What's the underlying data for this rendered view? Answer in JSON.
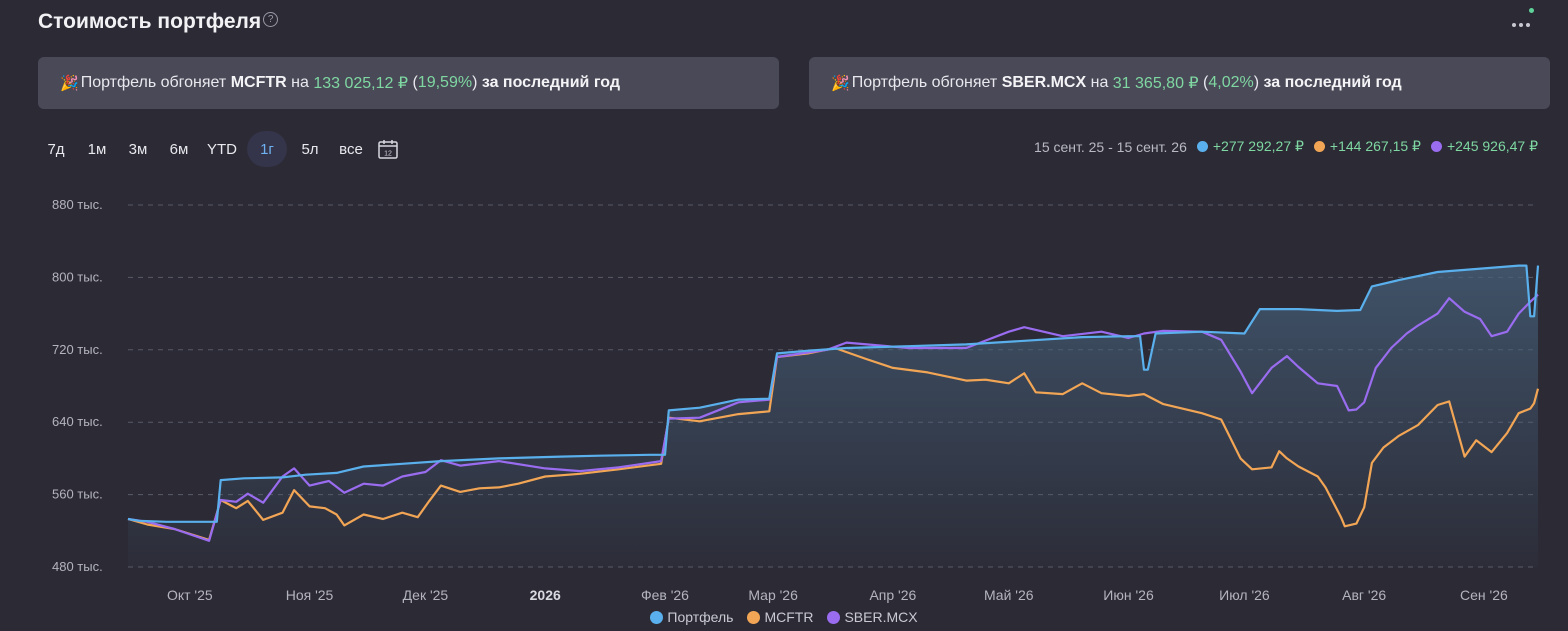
{
  "header": {
    "title": "Стоимость портфеля",
    "help_icon": "?"
  },
  "banners": [
    {
      "icon": "🎉",
      "prefix": "Портфель обгоняет ",
      "ticker": "MCFTR",
      "mid": " на ",
      "amount": "133 025,12 ₽",
      "pct_open": " (",
      "pct": "19,59%",
      "pct_close": ")",
      "suffix": " за последний год"
    },
    {
      "icon": "🎉",
      "prefix": "Портфель обгоняет ",
      "ticker": "SBER.MCX",
      "mid": " на ",
      "amount": "31 365,80 ₽",
      "pct_open": " (",
      "pct": "4,02%",
      "pct_close": ")",
      "suffix": " за последний год"
    }
  ],
  "periods": [
    "7д",
    "1м",
    "3м",
    "6м",
    "YTD",
    "1г",
    "5л",
    "все"
  ],
  "active_period": "1г",
  "calendar_icon_text": "12",
  "summary": {
    "range": "15 сент. 25 - 15 сент. 26",
    "items": [
      {
        "color": "#5ab0ec",
        "value": "+277 292,27 ₽"
      },
      {
        "color": "#f2a655",
        "value": "+144 267,15 ₽"
      },
      {
        "color": "#9a6cf0",
        "value": "+245 926,47 ₽"
      }
    ]
  },
  "colors": {
    "portfolio": "#5ab0ec",
    "mcftr": "#f2a655",
    "sber": "#9a6cf0",
    "green": "#7fd7a2",
    "background": "#2b2a35"
  },
  "chart_data": {
    "type": "line",
    "y_ticks": [
      "480 тыс.",
      "560 тыс.",
      "640 тыс.",
      "720 тыс.",
      "800 тыс.",
      "880 тыс."
    ],
    "y_tick_values": [
      480,
      560,
      640,
      720,
      800,
      880
    ],
    "ylim": [
      480,
      880
    ],
    "x_range": [
      "2025-09-15",
      "2026-09-15"
    ],
    "x_ticks": [
      {
        "label": "Окт '25",
        "date": "2025-10-01"
      },
      {
        "label": "Ноя '25",
        "date": "2025-11-01"
      },
      {
        "label": "Дек '25",
        "date": "2025-12-01"
      },
      {
        "label": "2026",
        "date": "2026-01-01",
        "bold": true
      },
      {
        "label": "Фев '26",
        "date": "2026-02-01"
      },
      {
        "label": "Мар '26",
        "date": "2026-03-01"
      },
      {
        "label": "Апр '26",
        "date": "2026-04-01"
      },
      {
        "label": "Май '26",
        "date": "2026-05-01"
      },
      {
        "label": "Июн '26",
        "date": "2026-06-01"
      },
      {
        "label": "Июл '26",
        "date": "2026-07-01"
      },
      {
        "label": "Авг '26",
        "date": "2026-08-01"
      },
      {
        "label": "Сен '26",
        "date": "2026-09-01"
      }
    ],
    "grid": true,
    "series": [
      {
        "name": "Портфель",
        "color": "#5ab0ec",
        "points": [
          [
            "2025-09-15",
            533
          ],
          [
            "2025-09-18",
            531
          ],
          [
            "2025-09-25",
            530
          ],
          [
            "2025-10-08",
            530
          ],
          [
            "2025-10-09",
            576
          ],
          [
            "2025-10-15",
            578
          ],
          [
            "2025-10-25",
            579
          ],
          [
            "2025-10-31",
            582
          ],
          [
            "2025-11-08",
            584
          ],
          [
            "2025-11-15",
            591
          ],
          [
            "2025-11-25",
            594
          ],
          [
            "2025-12-05",
            597
          ],
          [
            "2025-12-20",
            600
          ],
          [
            "2026-01-05",
            602
          ],
          [
            "2026-01-15",
            603
          ],
          [
            "2026-01-28",
            604
          ],
          [
            "2026-02-01",
            604
          ],
          [
            "2026-02-02",
            653
          ],
          [
            "2026-02-10",
            656
          ],
          [
            "2026-02-20",
            665
          ],
          [
            "2026-02-28",
            666
          ],
          [
            "2026-03-02",
            716
          ],
          [
            "2026-03-10",
            719
          ],
          [
            "2026-03-20",
            722
          ],
          [
            "2026-04-05",
            724
          ],
          [
            "2026-04-20",
            726
          ],
          [
            "2026-05-05",
            730
          ],
          [
            "2026-05-20",
            734
          ],
          [
            "2026-06-01",
            735
          ],
          [
            "2026-06-04",
            735
          ],
          [
            "2026-06-05",
            698
          ],
          [
            "2026-06-06",
            698
          ],
          [
            "2026-06-08",
            738
          ],
          [
            "2026-06-20",
            740
          ],
          [
            "2026-07-01",
            738
          ],
          [
            "2026-07-05",
            765
          ],
          [
            "2026-07-15",
            765
          ],
          [
            "2026-07-25",
            763
          ],
          [
            "2026-07-31",
            764
          ],
          [
            "2026-08-03",
            790
          ],
          [
            "2026-08-10",
            797
          ],
          [
            "2026-08-20",
            806
          ],
          [
            "2026-09-01",
            810
          ],
          [
            "2026-09-10",
            813
          ],
          [
            "2026-09-12",
            813
          ],
          [
            "2026-09-13",
            757
          ],
          [
            "2026-09-14",
            757
          ],
          [
            "2026-09-15",
            813
          ]
        ]
      },
      {
        "name": "MCFTR",
        "color": "#f2a655",
        "points": [
          [
            "2025-09-15",
            533
          ],
          [
            "2025-09-20",
            527
          ],
          [
            "2025-09-27",
            522
          ],
          [
            "2025-10-06",
            510
          ],
          [
            "2025-10-09",
            554
          ],
          [
            "2025-10-13",
            545
          ],
          [
            "2025-10-16",
            553
          ],
          [
            "2025-10-20",
            532
          ],
          [
            "2025-10-25",
            540
          ],
          [
            "2025-10-28",
            565
          ],
          [
            "2025-11-01",
            547
          ],
          [
            "2025-11-05",
            545
          ],
          [
            "2025-11-08",
            538
          ],
          [
            "2025-11-10",
            526
          ],
          [
            "2025-11-15",
            538
          ],
          [
            "2025-11-20",
            533
          ],
          [
            "2025-11-25",
            540
          ],
          [
            "2025-11-29",
            535
          ],
          [
            "2025-12-02",
            553
          ],
          [
            "2025-12-05",
            570
          ],
          [
            "2025-12-10",
            563
          ],
          [
            "2025-12-15",
            567
          ],
          [
            "2025-12-20",
            568
          ],
          [
            "2025-12-25",
            572
          ],
          [
            "2026-01-01",
            580
          ],
          [
            "2026-01-10",
            583
          ],
          [
            "2026-01-20",
            588
          ],
          [
            "2026-01-31",
            594
          ],
          [
            "2026-02-02",
            645
          ],
          [
            "2026-02-10",
            641
          ],
          [
            "2026-02-20",
            649
          ],
          [
            "2026-02-28",
            652
          ],
          [
            "2026-03-02",
            712
          ],
          [
            "2026-03-10",
            716
          ],
          [
            "2026-03-17",
            722
          ],
          [
            "2026-03-25",
            710
          ],
          [
            "2026-04-01",
            700
          ],
          [
            "2026-04-10",
            695
          ],
          [
            "2026-04-20",
            686
          ],
          [
            "2026-04-25",
            687
          ],
          [
            "2026-05-01",
            683
          ],
          [
            "2026-05-05",
            694
          ],
          [
            "2026-05-08",
            673
          ],
          [
            "2026-05-15",
            671
          ],
          [
            "2026-05-20",
            683
          ],
          [
            "2026-05-25",
            672
          ],
          [
            "2026-06-01",
            669
          ],
          [
            "2026-06-05",
            671
          ],
          [
            "2026-06-10",
            660
          ],
          [
            "2026-06-20",
            650
          ],
          [
            "2026-06-25",
            643
          ],
          [
            "2026-06-30",
            600
          ],
          [
            "2026-07-03",
            588
          ],
          [
            "2026-07-08",
            590
          ],
          [
            "2026-07-10",
            608
          ],
          [
            "2026-07-12",
            600
          ],
          [
            "2026-07-15",
            591
          ],
          [
            "2026-07-20",
            580
          ],
          [
            "2026-07-22",
            568
          ],
          [
            "2026-07-26",
            535
          ],
          [
            "2026-07-27",
            525
          ],
          [
            "2026-07-30",
            528
          ],
          [
            "2026-08-01",
            546
          ],
          [
            "2026-08-03",
            595
          ],
          [
            "2026-08-06",
            612
          ],
          [
            "2026-08-10",
            625
          ],
          [
            "2026-08-15",
            637
          ],
          [
            "2026-08-20",
            659
          ],
          [
            "2026-08-23",
            663
          ],
          [
            "2026-08-27",
            602
          ],
          [
            "2026-08-30",
            620
          ],
          [
            "2026-09-03",
            607
          ],
          [
            "2026-09-07",
            628
          ],
          [
            "2026-09-10",
            650
          ],
          [
            "2026-09-13",
            655
          ],
          [
            "2026-09-14",
            661
          ],
          [
            "2026-09-15",
            677
          ]
        ]
      },
      {
        "name": "SBER.MCX",
        "color": "#9a6cf0",
        "points": [
          [
            "2025-09-15",
            533
          ],
          [
            "2025-09-20",
            530
          ],
          [
            "2025-09-27",
            522
          ],
          [
            "2025-10-06",
            509
          ],
          [
            "2025-10-09",
            554
          ],
          [
            "2025-10-13",
            552
          ],
          [
            "2025-10-16",
            561
          ],
          [
            "2025-10-20",
            551
          ],
          [
            "2025-10-25",
            580
          ],
          [
            "2025-10-28",
            589
          ],
          [
            "2025-11-01",
            570
          ],
          [
            "2025-11-06",
            575
          ],
          [
            "2025-11-10",
            562
          ],
          [
            "2025-11-15",
            572
          ],
          [
            "2025-11-20",
            570
          ],
          [
            "2025-11-25",
            580
          ],
          [
            "2025-12-01",
            585
          ],
          [
            "2025-12-05",
            598
          ],
          [
            "2025-12-10",
            592
          ],
          [
            "2025-12-20",
            597
          ],
          [
            "2026-01-01",
            589
          ],
          [
            "2026-01-10",
            586
          ],
          [
            "2026-01-20",
            590
          ],
          [
            "2026-01-31",
            597
          ],
          [
            "2026-02-02",
            644
          ],
          [
            "2026-02-10",
            645
          ],
          [
            "2026-02-20",
            662
          ],
          [
            "2026-02-28",
            665
          ],
          [
            "2026-03-02",
            712
          ],
          [
            "2026-03-10",
            717
          ],
          [
            "2026-03-15",
            720
          ],
          [
            "2026-03-20",
            728
          ],
          [
            "2026-04-05",
            722
          ],
          [
            "2026-04-20",
            722
          ],
          [
            "2026-05-01",
            740
          ],
          [
            "2026-05-05",
            745
          ],
          [
            "2026-05-15",
            735
          ],
          [
            "2026-05-25",
            740
          ],
          [
            "2026-06-01",
            733
          ],
          [
            "2026-06-05",
            738
          ],
          [
            "2026-06-10",
            741
          ],
          [
            "2026-06-20",
            740
          ],
          [
            "2026-06-25",
            731
          ],
          [
            "2026-06-30",
            696
          ],
          [
            "2026-07-03",
            672
          ],
          [
            "2026-07-08",
            700
          ],
          [
            "2026-07-12",
            713
          ],
          [
            "2026-07-15",
            701
          ],
          [
            "2026-07-20",
            683
          ],
          [
            "2026-07-25",
            680
          ],
          [
            "2026-07-28",
            653
          ],
          [
            "2026-07-30",
            654
          ],
          [
            "2026-08-01",
            662
          ],
          [
            "2026-08-04",
            700
          ],
          [
            "2026-08-08",
            722
          ],
          [
            "2026-08-12",
            738
          ],
          [
            "2026-08-15",
            747
          ],
          [
            "2026-08-20",
            760
          ],
          [
            "2026-08-23",
            777
          ],
          [
            "2026-08-27",
            762
          ],
          [
            "2026-08-31",
            754
          ],
          [
            "2026-09-03",
            735
          ],
          [
            "2026-09-07",
            740
          ],
          [
            "2026-09-10",
            760
          ],
          [
            "2026-09-13",
            773
          ],
          [
            "2026-09-15",
            781
          ]
        ]
      }
    ]
  }
}
